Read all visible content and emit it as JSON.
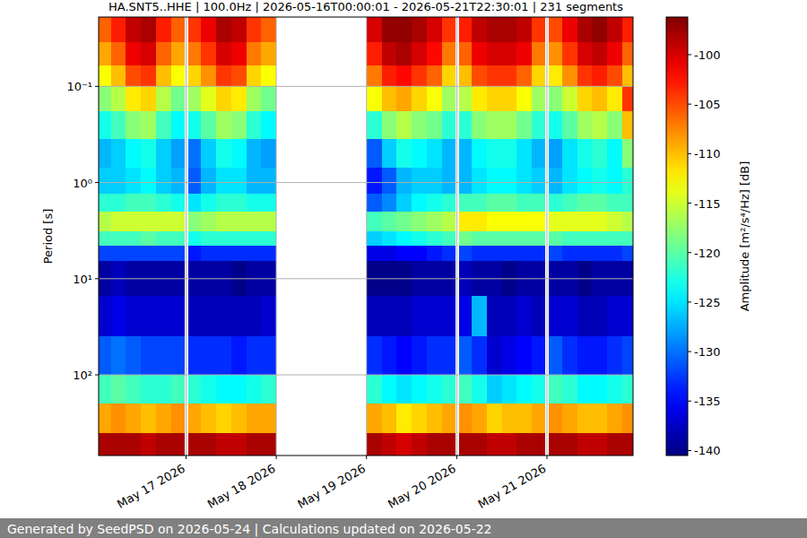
{
  "chart_data": {
    "type": "heatmap",
    "title": "HA.SNT5..HHE | 100.0Hz | 2026-05-16T00:00:01 - 2026-05-21T22:30:01 | 231 segments",
    "y_label": "Period [s]",
    "footer": "Generated by SeedPSD on 2026-05-24 | Calculations updated on 2026-05-22",
    "log": "y",
    "grid": true,
    "xlim": [
      0.75,
      142.9
    ],
    "xticks": [
      {
        "value": 24,
        "label": "May 17 2026"
      },
      {
        "value": 48,
        "label": "May 18 2026"
      },
      {
        "value": 72,
        "label": "May 19 2026"
      },
      {
        "value": 96,
        "label": "May 20 2026"
      },
      {
        "value": 120,
        "label": "May 21 2026"
      }
    ],
    "ylim": [
      690,
      0.019
    ],
    "yticks": [
      {
        "value": 0.1,
        "label": "10⁻¹"
      },
      {
        "value": 1,
        "label": "10⁰"
      },
      {
        "value": 10,
        "label": "10¹"
      },
      {
        "value": 100,
        "label": "10²"
      }
    ],
    "x_bins": [
      0.75,
      4,
      8,
      12,
      16,
      20,
      23.5,
      24.6,
      28,
      32,
      36,
      40,
      44,
      48,
      72,
      76,
      80,
      84,
      88,
      92,
      95.5,
      96.6,
      100,
      104,
      108,
      112,
      116,
      119.5,
      120.5,
      124,
      128,
      132,
      136,
      140,
      142.9
    ],
    "y_bins": [
      0.019,
      0.035,
      0.06,
      0.1,
      0.18,
      0.35,
      0.7,
      1.3,
      2.0,
      3.2,
      4.5,
      6.5,
      15,
      40,
      100,
      200,
      400,
      690
    ],
    "cells": [
      [
        -106,
        -103,
        -99,
        -98,
        -103,
        -106,
        null,
        -104,
        -101,
        -98,
        -99,
        -104,
        -106,
        null,
        -100,
        -97,
        -97,
        -98,
        -100,
        -104,
        null,
        -103,
        -99,
        -98,
        -98,
        -99,
        -104,
        null,
        -105,
        -101,
        -98,
        -97,
        -99,
        -103
      ],
      [
        -109,
        -106,
        -101,
        -100,
        -106,
        -109,
        null,
        -107,
        -104,
        -100,
        -101,
        -107,
        -109,
        null,
        -103,
        -99,
        -98,
        -100,
        -102,
        -107,
        null,
        -106,
        -101,
        -100,
        -100,
        -101,
        -107,
        null,
        -108,
        -104,
        -100,
        -99,
        -101,
        -106
      ],
      [
        -113,
        -110,
        -105,
        -104,
        -110,
        -113,
        null,
        -111,
        -108,
        -104,
        -105,
        -111,
        -113,
        null,
        -107,
        -103,
        -102,
        -104,
        -106,
        -111,
        null,
        -110,
        -105,
        -104,
        -104,
        -106,
        -111,
        null,
        -112,
        -108,
        -104,
        -103,
        -105,
        -110
      ],
      [
        -118,
        -116,
        -112,
        -111,
        -116,
        -119,
        null,
        -117,
        -114,
        -111,
        -112,
        -117,
        -119,
        null,
        -113,
        -110,
        -109,
        -111,
        -113,
        -117,
        null,
        -116,
        -112,
        -111,
        -111,
        -113,
        -117,
        null,
        -118,
        -115,
        -111,
        -110,
        -112,
        -104
      ],
      [
        -123,
        -121,
        -118,
        -117,
        -121,
        -124,
        null,
        -123,
        -120,
        -117,
        -118,
        -122,
        -124,
        null,
        -122,
        -118,
        -116,
        -118,
        -119,
        -122,
        null,
        -122,
        -118,
        -117,
        -117,
        -119,
        -122,
        null,
        -123,
        -120,
        -117,
        -116,
        -118,
        -110
      ],
      [
        -127,
        -126,
        -124,
        -123,
        -126,
        -128,
        null,
        -130,
        -126,
        -123,
        -124,
        -127,
        -128,
        null,
        -131,
        -126,
        -123,
        -124,
        -125,
        -127,
        null,
        -127,
        -124,
        -123,
        -123,
        -125,
        -127,
        null,
        -128,
        -125,
        -123,
        -122,
        -124,
        -118
      ],
      [
        -126,
        -126,
        -125,
        -124,
        -126,
        -127,
        null,
        -131,
        -127,
        -125,
        -125,
        -127,
        -127,
        null,
        -134,
        -131,
        -127,
        -126,
        -126,
        -127,
        null,
        -127,
        -125,
        -124,
        -124,
        -125,
        -126,
        null,
        -127,
        -125,
        -124,
        -123,
        -124,
        -122
      ],
      [
        -122,
        -122,
        -121,
        -121,
        -122,
        -123,
        null,
        -125,
        -123,
        -122,
        -122,
        -123,
        -123,
        null,
        -131,
        -129,
        -126,
        -124,
        -123,
        -122,
        null,
        -121,
        -121,
        -120,
        -120,
        -121,
        -121,
        null,
        -122,
        -121,
        -120,
        -120,
        -121,
        -121
      ],
      [
        -116,
        -115,
        -115,
        -115,
        -115,
        -115,
        null,
        -118,
        -117,
        -116,
        -116,
        -116,
        -116,
        null,
        -121,
        -120,
        -119,
        -118,
        -117,
        -116,
        null,
        -112,
        -112,
        -113,
        -113,
        -113,
        -113,
        null,
        -114,
        -114,
        -114,
        -114,
        -115,
        -116
      ],
      [
        -121,
        -121,
        -121,
        -120,
        -121,
        -121,
        null,
        -123,
        -122,
        -122,
        -122,
        -122,
        -122,
        null,
        -126,
        -125,
        -124,
        -123,
        -122,
        -121,
        null,
        -119,
        -120,
        -120,
        -120,
        -120,
        -120,
        null,
        -120,
        -121,
        -121,
        -121,
        -121,
        -121
      ],
      [
        -132,
        -132,
        -132,
        -132,
        -132,
        -132,
        null,
        -134,
        -133,
        -133,
        -133,
        -133,
        -133,
        null,
        -136,
        -136,
        -135,
        -135,
        -134,
        -133,
        null,
        -132,
        -133,
        -133,
        -133,
        -133,
        -133,
        null,
        -132,
        -133,
        -133,
        -133,
        -133,
        -132
      ],
      [
        -139,
        -138,
        -139,
        -139,
        -139,
        -139,
        null,
        -139,
        -139,
        -139,
        -140,
        -139,
        -139,
        null,
        -140,
        -140,
        -140,
        -139,
        -139,
        -139,
        null,
        -138,
        -139,
        -139,
        -140,
        -139,
        -139,
        null,
        -139,
        -139,
        -140,
        -139,
        -139,
        -139
      ],
      [
        -137,
        -136,
        -137,
        -137,
        -137,
        -137,
        null,
        -138,
        -138,
        -138,
        -138,
        -138,
        -137,
        null,
        -138,
        -138,
        -138,
        -137,
        -137,
        -137,
        null,
        -136,
        -127,
        -138,
        -138,
        -137,
        -138,
        null,
        -137,
        -137,
        -138,
        -138,
        -137,
        -137
      ],
      [
        -131,
        -130,
        -131,
        -132,
        -132,
        -132,
        null,
        -133,
        -133,
        -133,
        -134,
        -133,
        -133,
        null,
        -133,
        -134,
        -135,
        -134,
        -133,
        -133,
        null,
        -131,
        -133,
        -137,
        -136,
        -135,
        -134,
        null,
        -131,
        -133,
        -134,
        -134,
        -133,
        -132
      ],
      [
        -121,
        -120,
        -121,
        -122,
        -122,
        -121,
        null,
        -122,
        -123,
        -124,
        -124,
        -123,
        -122,
        null,
        -122,
        -124,
        -125,
        -124,
        -123,
        -122,
        null,
        -121,
        -123,
        -126,
        -125,
        -124,
        -123,
        null,
        -121,
        -122,
        -124,
        -124,
        -123,
        -122
      ],
      [
        -109,
        -108,
        -109,
        -110,
        -109,
        -108,
        null,
        -109,
        -110,
        -111,
        -110,
        -109,
        -109,
        null,
        -109,
        -110,
        -112,
        -111,
        -110,
        -109,
        null,
        -108,
        -109,
        -111,
        -110,
        -110,
        -109,
        null,
        -108,
        -109,
        -110,
        -110,
        -109,
        -108
      ],
      [
        -98,
        -98,
        -98,
        -99,
        -98,
        -98,
        null,
        -98,
        -98,
        -99,
        -99,
        -98,
        -98,
        null,
        -98,
        -99,
        -100,
        -99,
        -98,
        -98,
        null,
        -98,
        -98,
        -99,
        -99,
        -98,
        -98,
        null,
        -98,
        -98,
        -99,
        -99,
        -98,
        -98
      ]
    ],
    "colorbar": {
      "label": "Amplitude [m²/s⁴/Hz] [dB]",
      "range": [
        -140.5,
        -96.2
      ],
      "ticks": [
        -140,
        -135,
        -130,
        -125,
        -120,
        -115,
        -110,
        -105,
        -100
      ]
    }
  }
}
